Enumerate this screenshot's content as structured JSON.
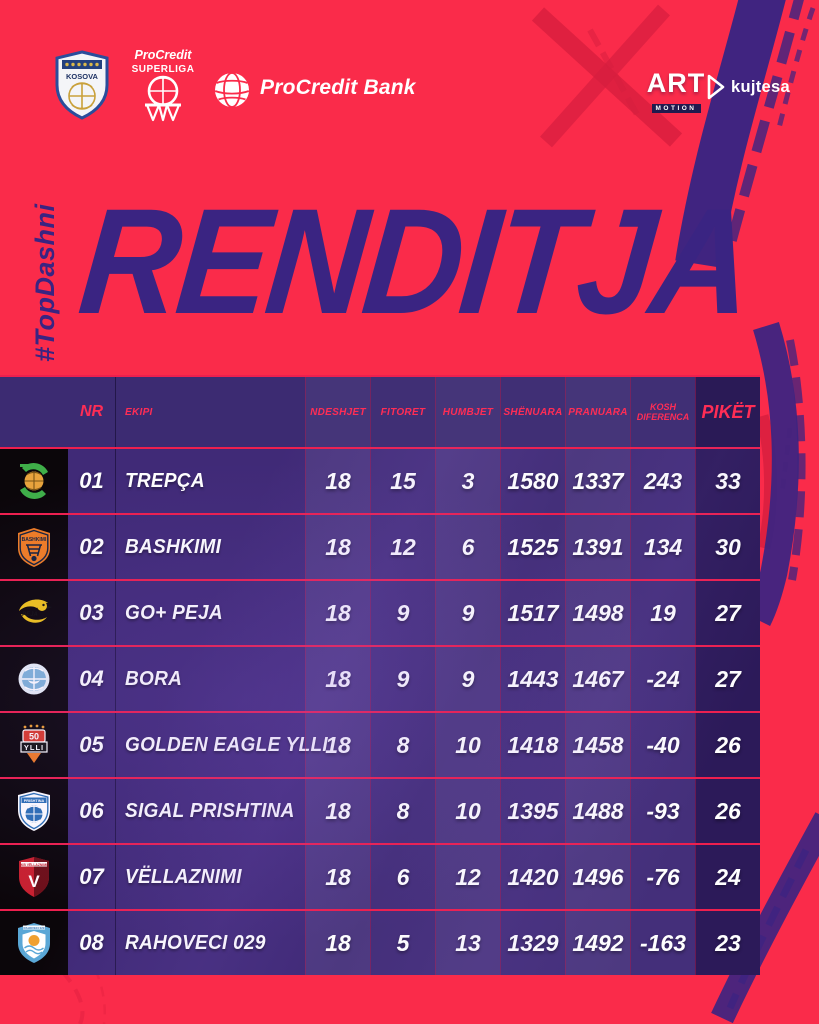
{
  "header": {
    "kosova": {
      "label": "KOSOVA"
    },
    "superliga": {
      "line1": "ProCredit",
      "line2": "SUPERLIGA"
    },
    "procredit_bank": {
      "label": "ProCredit Bank"
    },
    "art_motion": {
      "line1": "ART",
      "line2": "MOTION"
    },
    "kujtesa": {
      "label": "kujtesa"
    }
  },
  "hashtag": "#TopDashni",
  "title": "RENDITJA",
  "table": {
    "columns": [
      {
        "key": "nr",
        "label": "NR"
      },
      {
        "key": "ekipi",
        "label": "EKIPI"
      },
      {
        "key": "ndeshjet",
        "label": "NDESHJET"
      },
      {
        "key": "fitoret",
        "label": "FITORET"
      },
      {
        "key": "humbjet",
        "label": "HUMBJET"
      },
      {
        "key": "shenuara",
        "label": "SHËNUARA"
      },
      {
        "key": "pranuara",
        "label": "PRANUARA"
      },
      {
        "key": "kosh_diferenca",
        "label": "KOSH",
        "label2": "DIFERENCA"
      },
      {
        "key": "piket",
        "label": "PIKËT"
      }
    ],
    "rows": [
      {
        "nr": "01",
        "team": "TREPÇA",
        "logo": "trepca-logo",
        "ndeshjet": "18",
        "fitoret": "15",
        "humbjet": "3",
        "shenuara": "1580",
        "pranuara": "1337",
        "kosh": "243",
        "piket": "33"
      },
      {
        "nr": "02",
        "team": "BASHKIMI",
        "logo": "bashkimi-logo",
        "ndeshjet": "18",
        "fitoret": "12",
        "humbjet": "6",
        "shenuara": "1525",
        "pranuara": "1391",
        "kosh": "134",
        "piket": "30"
      },
      {
        "nr": "03",
        "team": "GO+ PEJA",
        "logo": "peja-logo",
        "ndeshjet": "18",
        "fitoret": "9",
        "humbjet": "9",
        "shenuara": "1517",
        "pranuara": "1498",
        "kosh": "19",
        "piket": "27"
      },
      {
        "nr": "04",
        "team": "BORA",
        "logo": "bora-logo",
        "ndeshjet": "18",
        "fitoret": "9",
        "humbjet": "9",
        "shenuara": "1443",
        "pranuara": "1467",
        "kosh": "-24",
        "piket": "27"
      },
      {
        "nr": "05",
        "team": "GOLDEN EAGLE YLLI",
        "logo": "golden-eagle-ylli-logo",
        "ndeshjet": "18",
        "fitoret": "8",
        "humbjet": "10",
        "shenuara": "1418",
        "pranuara": "1458",
        "kosh": "-40",
        "piket": "26"
      },
      {
        "nr": "06",
        "team": "SIGAL PRISHTINA",
        "logo": "sigal-prishtina-logo",
        "ndeshjet": "18",
        "fitoret": "8",
        "humbjet": "10",
        "shenuara": "1395",
        "pranuara": "1488",
        "kosh": "-93",
        "piket": "26"
      },
      {
        "nr": "07",
        "team": "VËLLAZNIMI",
        "logo": "vellaznimi-logo",
        "ndeshjet": "18",
        "fitoret": "6",
        "humbjet": "12",
        "shenuara": "1420",
        "pranuara": "1496",
        "kosh": "-76",
        "piket": "24"
      },
      {
        "nr": "08",
        "team": "RAHOVECI 029",
        "logo": "rahoveci-029-logo",
        "ndeshjet": "18",
        "fitoret": "5",
        "humbjet": "13",
        "shenuara": "1329",
        "pranuara": "1492",
        "kosh": "-163",
        "piket": "23"
      }
    ]
  },
  "colors": {
    "background_red": "#FA2B4A",
    "brush_purple": "#3A2482",
    "dark_red_texture": "#D61E3E",
    "table_header_bg": "#3C2B72",
    "table_row_bg": "#402A77",
    "piket_column_bg": "#2E1B5A",
    "row_separator": "#EE1F4E",
    "header_label": "#FF2D55",
    "logo_column_bg": "#0B060A",
    "text_white": "#FFFFFF"
  }
}
